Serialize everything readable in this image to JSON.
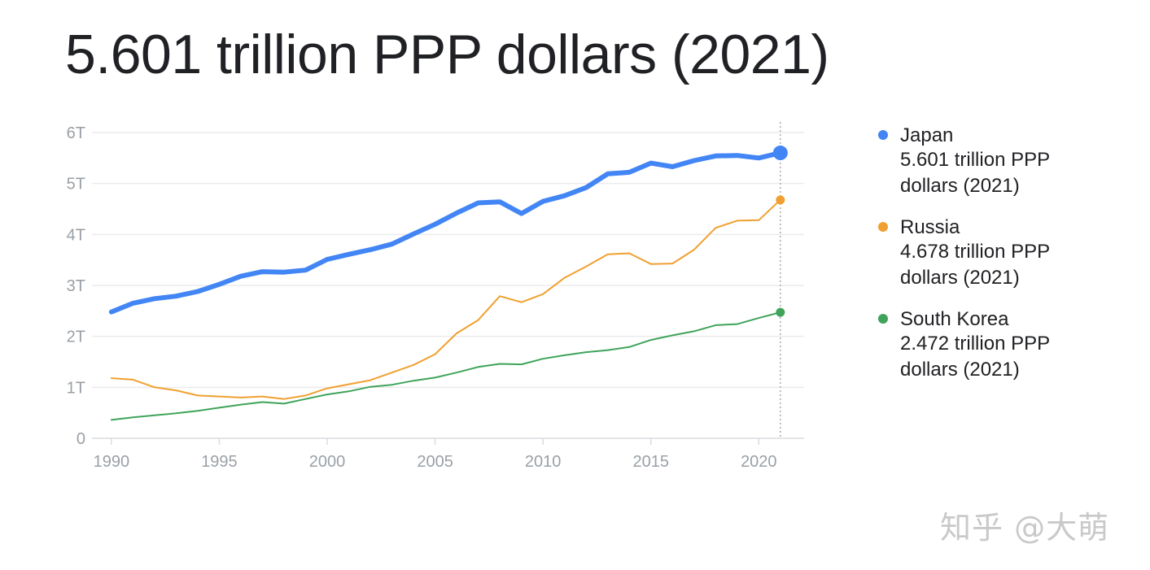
{
  "headline": "5.601 trillion PPP dollars (2021)",
  "watermark": "知乎 @大萌",
  "chart_data": {
    "type": "line",
    "x": [
      1990,
      1991,
      1992,
      1993,
      1994,
      1995,
      1996,
      1997,
      1998,
      1999,
      2000,
      2001,
      2002,
      2003,
      2004,
      2005,
      2006,
      2007,
      2008,
      2009,
      2010,
      2011,
      2012,
      2013,
      2014,
      2015,
      2016,
      2017,
      2018,
      2019,
      2020,
      2021
    ],
    "ylim": [
      0,
      6
    ],
    "y_ticks": [
      0,
      1,
      2,
      3,
      4,
      5,
      6
    ],
    "y_tick_labels": [
      "0",
      "1T",
      "2T",
      "3T",
      "4T",
      "5T",
      "6T"
    ],
    "x_ticks": [
      1990,
      1995,
      2000,
      2005,
      2010,
      2015,
      2020
    ],
    "x_tick_labels": [
      "1990",
      "1995",
      "2000",
      "2005",
      "2010",
      "2015",
      "2020"
    ],
    "grid": true,
    "legend_position": "right",
    "series": [
      {
        "name": "Japan",
        "value_label": "5.601 trillion PPP dollars (2021)",
        "color": "#4285f4",
        "emphasis": true,
        "values": [
          2.48,
          2.65,
          2.74,
          2.79,
          2.88,
          3.02,
          3.18,
          3.27,
          3.26,
          3.3,
          3.51,
          3.61,
          3.7,
          3.81,
          4.01,
          4.2,
          4.42,
          4.62,
          4.64,
          4.41,
          4.65,
          4.76,
          4.92,
          5.19,
          5.22,
          5.4,
          5.33,
          5.45,
          5.54,
          5.55,
          5.5,
          5.601
        ]
      },
      {
        "name": "Russia",
        "value_label": "4.678 trillion PPP dollars (2021)",
        "color": "#f0a030",
        "emphasis": false,
        "values": [
          1.18,
          1.15,
          1.0,
          0.94,
          0.84,
          0.82,
          0.8,
          0.82,
          0.77,
          0.84,
          0.98,
          1.06,
          1.14,
          1.29,
          1.44,
          1.65,
          2.06,
          2.32,
          2.79,
          2.67,
          2.83,
          3.15,
          3.37,
          3.61,
          3.63,
          3.42,
          3.43,
          3.7,
          4.13,
          4.27,
          4.28,
          4.678
        ]
      },
      {
        "name": "South Korea",
        "value_label": "2.472 trillion PPP dollars (2021)",
        "color": "#3fa45a",
        "emphasis": false,
        "values": [
          0.36,
          0.41,
          0.45,
          0.49,
          0.54,
          0.6,
          0.66,
          0.71,
          0.68,
          0.77,
          0.86,
          0.92,
          1.01,
          1.05,
          1.13,
          1.19,
          1.29,
          1.4,
          1.46,
          1.45,
          1.56,
          1.63,
          1.69,
          1.73,
          1.79,
          1.93,
          2.02,
          2.1,
          2.22,
          2.24,
          2.36,
          2.472
        ]
      }
    ],
    "highlight_x": 2021
  }
}
